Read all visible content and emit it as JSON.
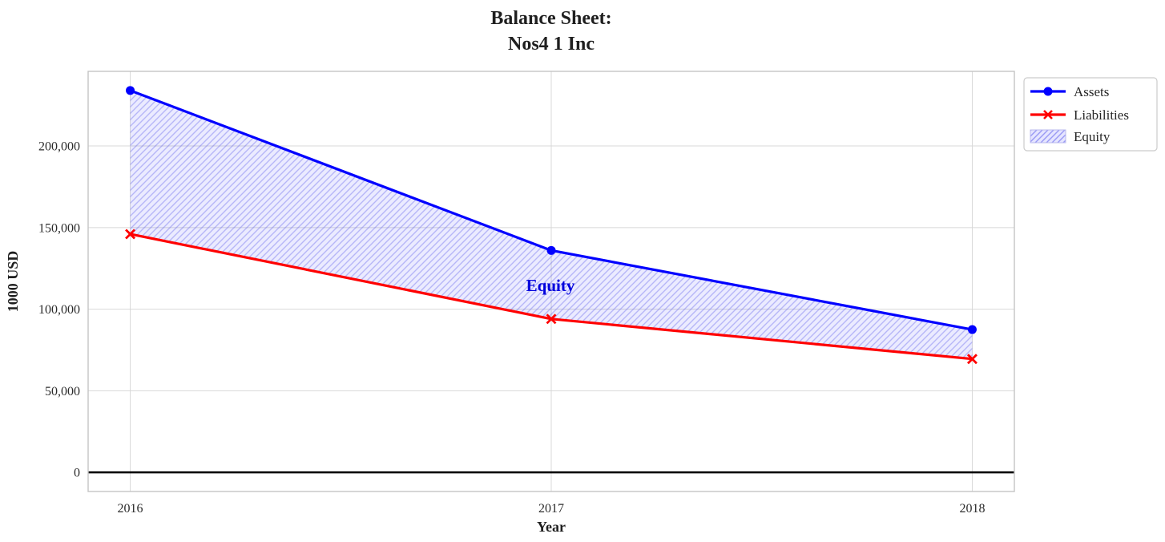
{
  "chart_data": {
    "type": "line",
    "title": "Balance Sheet:\nNos4 1 Inc",
    "title_lines": [
      "Balance Sheet:",
      "Nos4 1 Inc"
    ],
    "xlabel": "Year",
    "ylabel": "1000 USD",
    "x": [
      2016,
      2017,
      2018
    ],
    "series": [
      {
        "name": "Assets",
        "color": "#0000ff",
        "marker": "circle",
        "values": [
          234000,
          136000,
          87500
        ]
      },
      {
        "name": "Liabilities",
        "color": "#ff0000",
        "marker": "x",
        "values": [
          146000,
          94000,
          69500
        ]
      }
    ],
    "fill_between": {
      "name": "Equity",
      "upper_series": "Assets",
      "lower_series": "Liabilities",
      "values": [
        88000,
        42000,
        18000
      ],
      "hatch": "//",
      "base_color": "rgba(0,0,255,0.08)",
      "hatch_color": "rgba(60,60,230,0.30)"
    },
    "annotation": {
      "text": "Equity",
      "x": 2017,
      "y": 115000
    },
    "xticks": [
      2016,
      2017,
      2018
    ],
    "xtick_labels": [
      "2016",
      "2017",
      "2018"
    ],
    "yticks": [
      0,
      50000,
      100000,
      150000,
      200000
    ],
    "ytick_labels": [
      "0",
      "50,000",
      "100,000",
      "150,000",
      "200,000"
    ],
    "xlim": [
      2015.9,
      2018.1
    ],
    "ylim": [
      -11700,
      245700
    ],
    "grid": true,
    "zero_line": {
      "y": 0,
      "color": "#000000"
    },
    "legend_position": "outside-upper-right",
    "colors": {
      "grid": "#d8d8d8",
      "spine": "#c4c4c4",
      "legend_border": "#cccccc",
      "annotation_blue": "#0000dd"
    }
  }
}
